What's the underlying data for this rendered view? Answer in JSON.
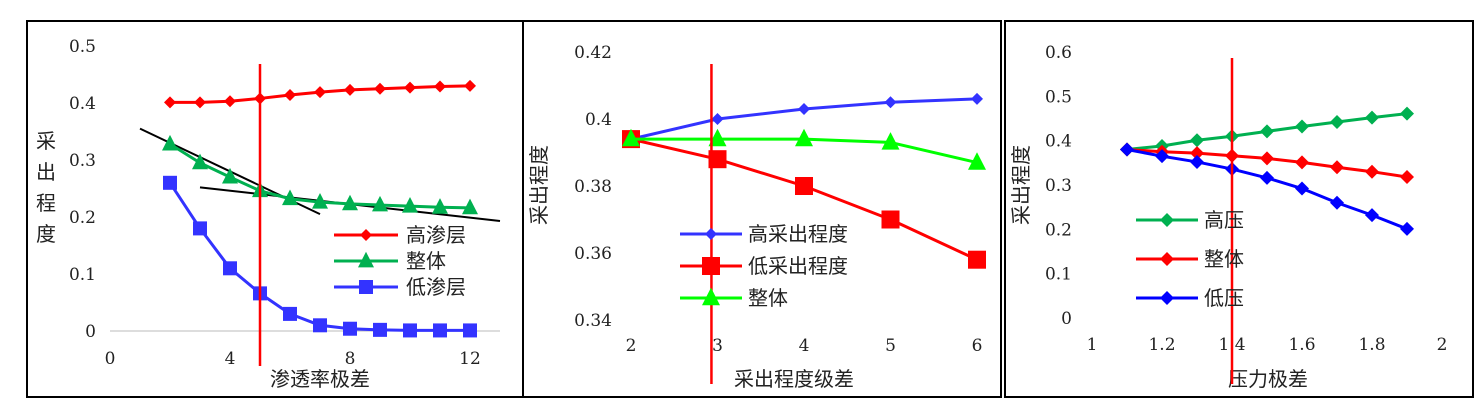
{
  "chart_data": [
    {
      "type": "line",
      "xlabel": "渗透率极差",
      "ylabel": "采出程度",
      "xlim": [
        0,
        13
      ],
      "ylim": [
        0,
        0.5
      ],
      "xticks": [
        0,
        4,
        8,
        12
      ],
      "yticks": [
        0,
        0.1,
        0.2,
        0.3,
        0.4,
        0.5
      ],
      "xtick_labels": [
        "0",
        "4",
        "8",
        "12"
      ],
      "ytick_labels": [
        "0",
        "0.1",
        "0.2",
        "0.3",
        "0.4",
        "0.5"
      ],
      "vline_x": 5,
      "legend_position": "bottom-right",
      "series": [
        {
          "name": "高渗层",
          "color": "#ff0000",
          "marker": "diamond",
          "x": [
            2,
            3,
            4,
            5,
            6,
            7,
            8,
            9,
            10,
            11,
            12
          ],
          "y": [
            0.401,
            0.401,
            0.403,
            0.408,
            0.414,
            0.419,
            0.423,
            0.425,
            0.427,
            0.429,
            0.43
          ]
        },
        {
          "name": "整体",
          "color": "#00b050",
          "marker": "triangle",
          "x": [
            2,
            3,
            4,
            5,
            6,
            7,
            8,
            9,
            10,
            11,
            12
          ],
          "y": [
            0.328,
            0.295,
            0.27,
            0.246,
            0.232,
            0.226,
            0.223,
            0.221,
            0.219,
            0.217,
            0.216
          ]
        },
        {
          "name": "低渗层",
          "color": "#3333ff",
          "marker": "square",
          "x": [
            2,
            3,
            4,
            5,
            6,
            7,
            8,
            9,
            10,
            11,
            12
          ],
          "y": [
            0.26,
            0.18,
            0.11,
            0.066,
            0.03,
            0.01,
            0.004,
            0.002,
            0.001,
            0.001,
            0.001
          ]
        }
      ],
      "trend_lines": [
        {
          "x": [
            1,
            7
          ],
          "y": [
            0.355,
            0.205
          ]
        },
        {
          "x": [
            3,
            13
          ],
          "y": [
            0.252,
            0.193
          ]
        }
      ]
    },
    {
      "type": "line",
      "xlabel": "采出程度级差",
      "ylabel": "采出程度",
      "xlim": [
        2,
        6
      ],
      "ylim": [
        0.34,
        0.42
      ],
      "xticks": [
        2,
        3,
        4,
        5,
        6
      ],
      "yticks": [
        0.34,
        0.36,
        0.38,
        0.4,
        0.42
      ],
      "xtick_labels": [
        "2",
        "3",
        "4",
        "5",
        "6"
      ],
      "ytick_labels": [
        "0.34",
        "0.36",
        "0.38",
        "0.4",
        "0.42"
      ],
      "vline_x": 2.93,
      "legend_position": "bottom-left",
      "series": [
        {
          "name": "高采出程度",
          "color": "#3333ff",
          "marker": "diamond",
          "x": [
            2,
            3,
            4,
            5,
            6
          ],
          "y": [
            0.394,
            0.4,
            0.403,
            0.405,
            0.406
          ]
        },
        {
          "name": "低采出程度",
          "color": "#ff0000",
          "marker": "square",
          "x": [
            2,
            3,
            4,
            5,
            6
          ],
          "y": [
            0.394,
            0.388,
            0.38,
            0.37,
            0.358
          ]
        },
        {
          "name": "整体",
          "color": "#00ff00",
          "marker": "triangle",
          "x": [
            2,
            3,
            4,
            5,
            6
          ],
          "y": [
            0.394,
            0.394,
            0.394,
            0.393,
            0.387
          ]
        }
      ]
    },
    {
      "type": "line",
      "xlabel": "压力极差",
      "ylabel": "采出程度",
      "xlim": [
        1,
        2
      ],
      "ylim": [
        0,
        0.6
      ],
      "xticks": [
        1,
        1.2,
        1.4,
        1.6,
        1.8,
        2
      ],
      "yticks": [
        0,
        0.1,
        0.2,
        0.3,
        0.4,
        0.5,
        0.6
      ],
      "xtick_labels": [
        "1",
        "1.2",
        "1.4",
        "1.6",
        "1.8",
        "2"
      ],
      "ytick_labels": [
        "0",
        "0.1",
        "0.2",
        "0.3",
        "0.4",
        "0.5",
        "0.6"
      ],
      "vline_x": 1.4,
      "legend_position": "bottom-left",
      "series": [
        {
          "name": "高压",
          "color": "#00b050",
          "marker": "diamond",
          "x": [
            1.1,
            1.2,
            1.3,
            1.4,
            1.5,
            1.6,
            1.7,
            1.8,
            1.9
          ],
          "y": [
            0.38,
            0.388,
            0.401,
            0.41,
            0.421,
            0.432,
            0.442,
            0.452,
            0.461
          ]
        },
        {
          "name": "整体",
          "color": "#ff0000",
          "marker": "diamond",
          "x": [
            1.1,
            1.2,
            1.3,
            1.4,
            1.5,
            1.6,
            1.7,
            1.8,
            1.9
          ],
          "y": [
            0.38,
            0.375,
            0.372,
            0.366,
            0.36,
            0.351,
            0.34,
            0.33,
            0.318
          ]
        },
        {
          "name": "低压",
          "color": "#0000ff",
          "marker": "diamond",
          "x": [
            1.1,
            1.2,
            1.3,
            1.4,
            1.5,
            1.6,
            1.7,
            1.8,
            1.9
          ],
          "y": [
            0.38,
            0.365,
            0.352,
            0.336,
            0.316,
            0.292,
            0.26,
            0.232,
            0.201
          ]
        }
      ]
    }
  ]
}
